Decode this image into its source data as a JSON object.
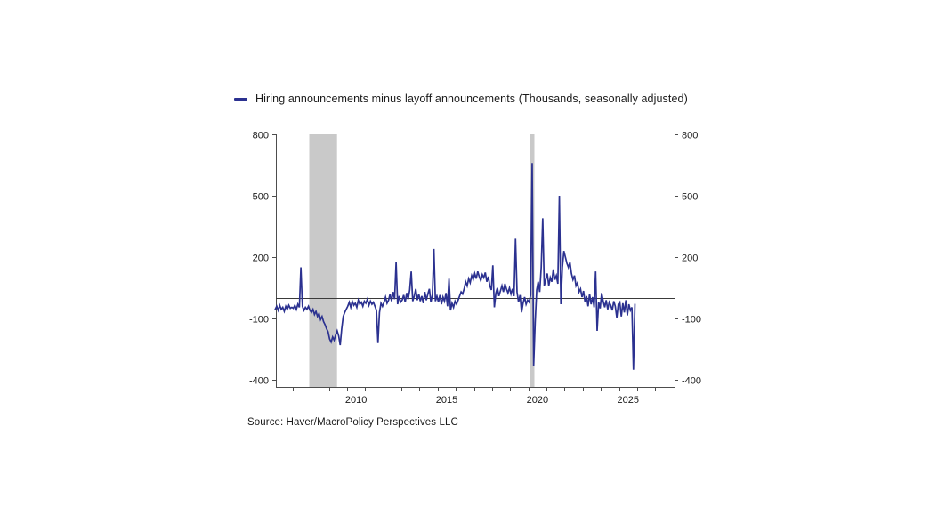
{
  "legend": {
    "label": "Hiring announcements minus layoff announcements (Thousands, seasonally adjusted)"
  },
  "source": {
    "text": "Source:  Haver/MacroPolicy Perspectives LLC"
  },
  "chart_data": {
    "type": "line",
    "title": "",
    "series_name": "Hiring announcements minus layoff announcements",
    "unit": "Thousands, seasonally adjusted",
    "frequency": "monthly",
    "x_start": {
      "year": 2006,
      "month": 1
    },
    "values_by_year": {
      "2006": [
        -55,
        -40,
        -60,
        -35,
        -55,
        -45,
        -65,
        -40,
        -55,
        -35,
        -50,
        -45
      ],
      "2007": [
        -50,
        -35,
        -55,
        -30,
        -45,
        150,
        -40,
        -60,
        -45,
        -55,
        -40,
        -60
      ],
      "2008": [
        -70,
        -55,
        -80,
        -65,
        -90,
        -75,
        -105,
        -90,
        -115,
        -130,
        -150,
        -165
      ],
      "2009": [
        -200,
        -215,
        -190,
        -205,
        -180,
        -160,
        -185,
        -230,
        -150,
        -90,
        -70,
        -55
      ],
      "2010": [
        -40,
        -20,
        -45,
        -15,
        -35,
        -25,
        -45,
        -10,
        -30,
        -20,
        -40,
        -15
      ],
      "2011": [
        -25,
        -5,
        -35,
        -15,
        -30,
        -20,
        -40,
        -60,
        -220,
        -70,
        -25,
        -40
      ],
      "2012": [
        -20,
        5,
        -25,
        -10,
        20,
        -15,
        30,
        -5,
        175,
        -30,
        10,
        -20
      ],
      "2013": [
        -10,
        15,
        -20,
        25,
        -5,
        40,
        130,
        -15,
        10,
        45,
        -10,
        20
      ],
      "2014": [
        -15,
        10,
        -25,
        30,
        -10,
        20,
        45,
        -20,
        15,
        240,
        -15,
        10
      ],
      "2015": [
        -20,
        15,
        -30,
        5,
        -15,
        25,
        -40,
        95,
        -60,
        -25,
        -45,
        -15
      ],
      "2016": [
        -30,
        -10,
        10,
        30,
        20,
        45,
        80,
        60,
        95,
        75,
        110,
        90
      ],
      "2017": [
        120,
        95,
        130,
        105,
        85,
        115,
        100,
        125,
        80,
        105,
        60,
        40
      ],
      "2018": [
        160,
        -45,
        25,
        50,
        10,
        35,
        60,
        30,
        70,
        45,
        25,
        50
      ],
      "2019": [
        20,
        45,
        10,
        290,
        30,
        -20,
        15,
        -70,
        -25,
        5,
        -30,
        -10
      ],
      "2020": [
        -20,
        15,
        660,
        -330,
        -120,
        40,
        80,
        30,
        150,
        390,
        60,
        90
      ],
      "2021": [
        120,
        60,
        100,
        80,
        140,
        90,
        110,
        70,
        500,
        -30,
        150,
        230
      ],
      "2022": [
        200,
        170,
        150,
        175,
        120,
        90,
        110,
        60,
        75,
        30,
        45,
        5
      ],
      "2023": [
        35,
        -20,
        10,
        -40,
        20,
        -30,
        5,
        -45,
        130,
        -160,
        -20,
        -50
      ],
      "2024": [
        25,
        -15,
        -45,
        -10,
        -55,
        -20,
        -35,
        -60,
        -15,
        -40,
        -95,
        -30
      ],
      "2025": [
        -20,
        -90,
        -25,
        -70,
        -10,
        -85,
        -30,
        -60,
        -45,
        -350,
        -30
      ]
    },
    "y_ticks": [
      800,
      500,
      200,
      -100,
      -400
    ],
    "y_tick_labels": [
      "800",
      "500",
      "200",
      "-100",
      "-400"
    ],
    "x_tick_labels": [
      "2010",
      "2015",
      "2020",
      "2025"
    ],
    "x_label_positions_yearfrac": [
      2010.5,
      2015.5,
      2020.5,
      2025.5
    ],
    "year_minor_ticks": [
      2007,
      2008,
      2009,
      2010,
      2011,
      2012,
      2013,
      2014,
      2015,
      2016,
      2017,
      2018,
      2019,
      2020,
      2021,
      2022,
      2023,
      2024,
      2025,
      2026,
      2027
    ],
    "xlim": [
      2006.08,
      2028.06
    ],
    "ylim": [
      -434,
      800
    ],
    "zero_line": 0,
    "grid": "off",
    "legend_position": "top",
    "recession_bands": [
      {
        "start": 2007.92,
        "end": 2009.45
      },
      {
        "start": 2020.08,
        "end": 2020.33
      }
    ],
    "colors": {
      "line": "#2b3190",
      "band": "#c9c9c9",
      "axis": "#4d4d4d",
      "zero_line": "#3a3a3a",
      "text": "#1a1a1a"
    }
  }
}
